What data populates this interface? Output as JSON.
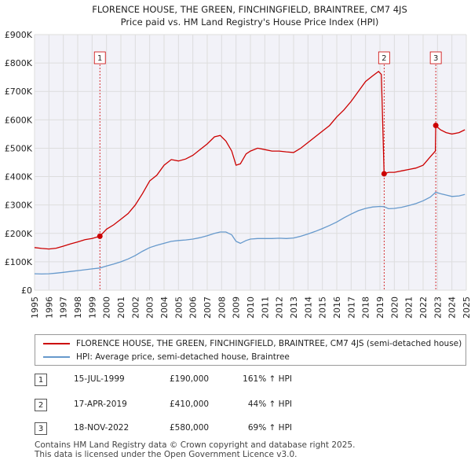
{
  "title_line1": "FLORENCE HOUSE, THE GREEN, FINCHINGFIELD, BRAINTREE, CM7 4JS",
  "title_line2": "Price paid vs. HM Land Registry's House Price Index (HPI)",
  "colors": {
    "property": "#cc0000",
    "hpi": "#6699cc",
    "grid": "#dddddd",
    "bg": "#f2f2f8"
  },
  "chart_data": {
    "type": "line",
    "xlim": [
      1995,
      2025
    ],
    "ylim": [
      0,
      900000
    ],
    "y_ticks": [
      {
        "value": 0,
        "label": "£0"
      },
      {
        "value": 100000,
        "label": "£100K"
      },
      {
        "value": 200000,
        "label": "£200K"
      },
      {
        "value": 300000,
        "label": "£300K"
      },
      {
        "value": 400000,
        "label": "£400K"
      },
      {
        "value": 500000,
        "label": "£500K"
      },
      {
        "value": 600000,
        "label": "£600K"
      },
      {
        "value": 700000,
        "label": "£700K"
      },
      {
        "value": 800000,
        "label": "£800K"
      },
      {
        "value": 900000,
        "label": "£900K"
      }
    ],
    "x_ticks": [
      "1995",
      "1996",
      "1997",
      "1998",
      "1999",
      "2000",
      "2001",
      "2002",
      "2003",
      "2004",
      "2005",
      "2006",
      "2007",
      "2008",
      "2009",
      "2010",
      "2011",
      "2012",
      "2013",
      "2014",
      "2015",
      "2016",
      "2017",
      "2018",
      "2019",
      "2020",
      "2021",
      "2022",
      "2023",
      "2024",
      "2025"
    ],
    "series": [
      {
        "name": "FLORENCE HOUSE, THE GREEN, FINCHINGFIELD, BRAINTREE, CM7 4JS (semi-detached house)",
        "color": "#cc0000",
        "x": [
          1995,
          1995.5,
          1996,
          1996.5,
          1997,
          1997.5,
          1998,
          1998.5,
          1999,
          1999.54,
          2000,
          2000.5,
          2001,
          2001.5,
          2002,
          2002.5,
          2003,
          2003.5,
          2004,
          2004.5,
          2005,
          2005.5,
          2006,
          2006.5,
          2007,
          2007.5,
          2007.9,
          2008.3,
          2008.7,
          2009,
          2009.3,
          2009.7,
          2010,
          2010.5,
          2011,
          2011.5,
          2012,
          2012.5,
          2013,
          2013.5,
          2014,
          2014.5,
          2015,
          2015.5,
          2016,
          2016.5,
          2017,
          2017.5,
          2018,
          2018.5,
          2018.9,
          2019.1,
          2019.29,
          2019.6,
          2020,
          2020.5,
          2021,
          2021.5,
          2022,
          2022.5,
          2022.85,
          2022.88,
          2023.2,
          2023.6,
          2024,
          2024.5,
          2024.9
        ],
        "y": [
          150000,
          147000,
          145000,
          148000,
          155000,
          163000,
          170000,
          178000,
          182000,
          190000,
          215000,
          230000,
          250000,
          270000,
          300000,
          340000,
          385000,
          405000,
          440000,
          460000,
          455000,
          462000,
          475000,
          495000,
          515000,
          540000,
          545000,
          525000,
          490000,
          440000,
          445000,
          480000,
          490000,
          500000,
          495000,
          490000,
          490000,
          487000,
          485000,
          500000,
          520000,
          540000,
          560000,
          580000,
          610000,
          635000,
          665000,
          700000,
          735000,
          755000,
          770000,
          760000,
          410000,
          415000,
          415000,
          420000,
          425000,
          430000,
          440000,
          470000,
          490000,
          580000,
          565000,
          555000,
          550000,
          555000,
          565000
        ]
      },
      {
        "name": "HPI: Average price, semi-detached house, Braintree",
        "color": "#6699cc",
        "x": [
          1995,
          1995.5,
          1996,
          1996.5,
          1997,
          1997.5,
          1998,
          1998.5,
          1999,
          1999.54,
          2000,
          2000.5,
          2001,
          2001.5,
          2002,
          2002.5,
          2003,
          2003.5,
          2004,
          2004.5,
          2005,
          2005.5,
          2006,
          2006.5,
          2007,
          2007.5,
          2007.9,
          2008.3,
          2008.7,
          2009,
          2009.3,
          2009.7,
          2010,
          2010.5,
          2011,
          2011.5,
          2012,
          2012.5,
          2013,
          2013.5,
          2014,
          2014.5,
          2015,
          2015.5,
          2016,
          2016.5,
          2017,
          2017.5,
          2018,
          2018.5,
          2019,
          2019.29,
          2019.6,
          2020,
          2020.5,
          2021,
          2021.5,
          2022,
          2022.5,
          2022.88,
          2023.2,
          2023.6,
          2024,
          2024.5,
          2024.9
        ],
        "y": [
          58000,
          57000,
          58000,
          60000,
          63000,
          66000,
          69000,
          72000,
          75000,
          78000,
          85000,
          92000,
          100000,
          110000,
          122000,
          137000,
          150000,
          158000,
          165000,
          172000,
          175000,
          177000,
          180000,
          185000,
          192000,
          200000,
          205000,
          205000,
          195000,
          172000,
          165000,
          175000,
          180000,
          182000,
          182000,
          182000,
          183000,
          182000,
          184000,
          190000,
          198000,
          207000,
          217000,
          228000,
          240000,
          255000,
          268000,
          280000,
          288000,
          293000,
          295000,
          294000,
          287000,
          288000,
          292000,
          298000,
          305000,
          315000,
          328000,
          345000,
          340000,
          335000,
          330000,
          332000,
          337000
        ]
      }
    ],
    "sales": [
      {
        "id": "1",
        "date": "15-JUL-1999",
        "x": 1999.54,
        "price": 190000,
        "price_label": "£190,000",
        "hpi_label": "161% ↑ HPI"
      },
      {
        "id": "2",
        "date": "17-APR-2019",
        "x": 2019.29,
        "price": 410000,
        "price_label": "£410,000",
        "hpi_label": "44% ↑ HPI"
      },
      {
        "id": "3",
        "date": "18-NOV-2022",
        "x": 2022.88,
        "price": 580000,
        "price_label": "£580,000",
        "hpi_label": "69% ↑ HPI"
      }
    ]
  },
  "footer": {
    "line1": "Contains HM Land Registry data © Crown copyright and database right 2025.",
    "line2": "This data is licensed under the Open Government Licence v3.0."
  }
}
